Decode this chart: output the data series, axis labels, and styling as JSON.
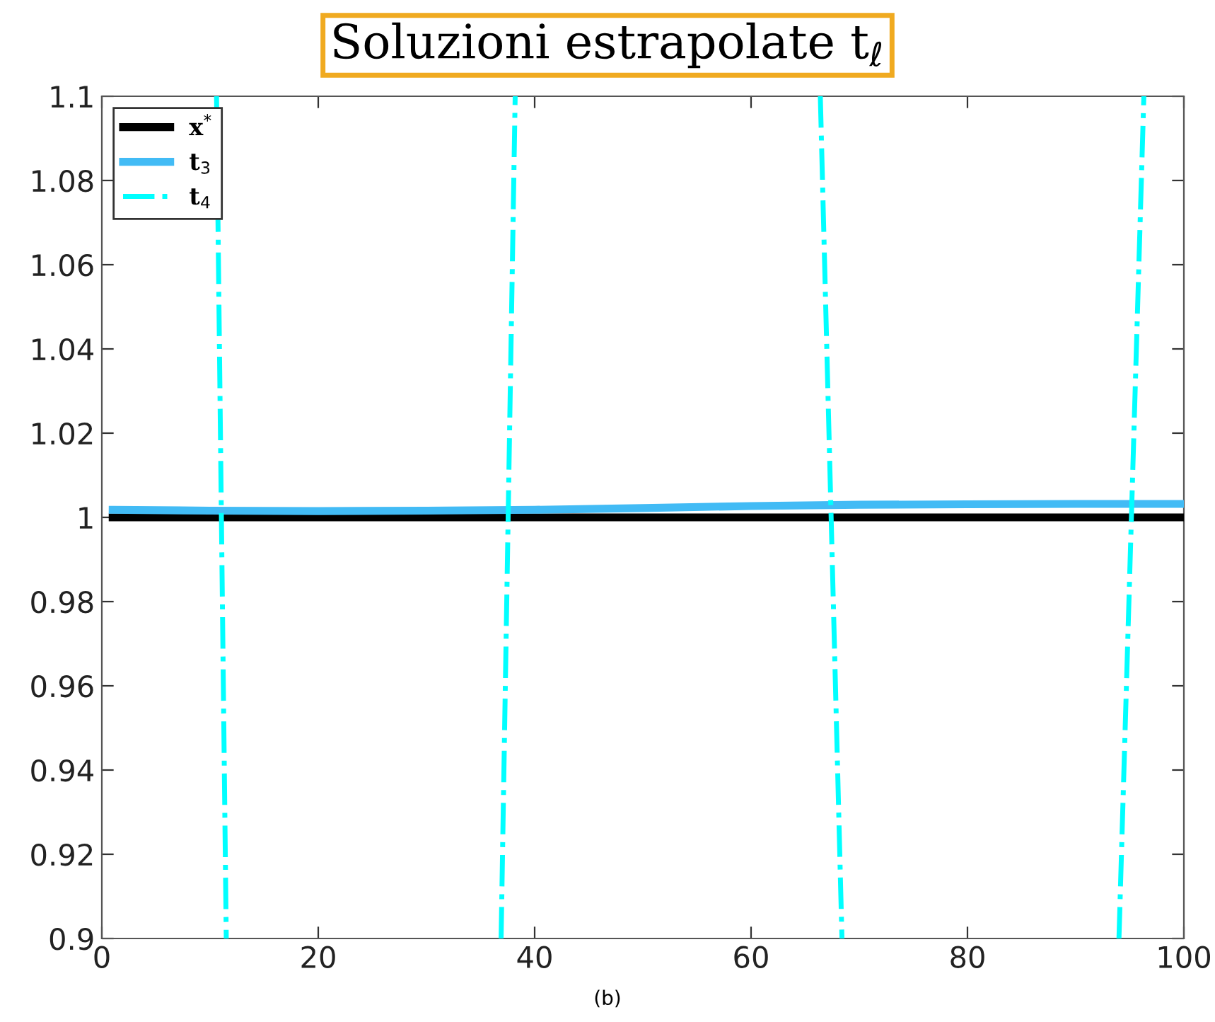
{
  "chart_data": {
    "type": "line",
    "title": "Soluzioni estrapolate t$_{ℓ}$",
    "annotations": [
      "(b)"
    ],
    "xlim": [
      0,
      100
    ],
    "xticks": [
      0,
      20,
      40,
      60,
      80,
      100
    ],
    "ylim": [
      0.9,
      1.1
    ],
    "yticks": [
      0.9,
      0.92,
      0.94,
      0.96,
      0.98,
      1,
      1.02,
      1.04,
      1.06,
      1.08,
      1.1
    ],
    "grid": false,
    "legend": "top left",
    "series": [
      {
        "name": "x$^{*}$",
        "color": "#000000",
        "line_style": "solid",
        "x": [
          1,
          100
        ],
        "values": [
          1.0,
          1.0
        ]
      },
      {
        "name": "t$_{3}$",
        "color": "#42bbf5",
        "line_style": "solid",
        "x": [
          1,
          10,
          20,
          30,
          40,
          50,
          60,
          70,
          80,
          90,
          100
        ],
        "values": [
          1.0018,
          1.0016,
          1.0015,
          1.0016,
          1.0018,
          1.0022,
          1.0027,
          1.003,
          1.0031,
          1.0032,
          1.0032
        ]
      },
      {
        "name": "t$_{4}$",
        "color": "#00ffff",
        "line_style": "dashdot",
        "x": [
          10.6,
          11.5,
          null,
          36.9,
          38.2,
          null,
          66.4,
          68.4,
          null,
          94.0,
          96.3
        ],
        "values": [
          1.1,
          0.9,
          null,
          0.9,
          1.1,
          null,
          1.1,
          0.9,
          null,
          0.9,
          1.1
        ]
      }
    ]
  }
}
